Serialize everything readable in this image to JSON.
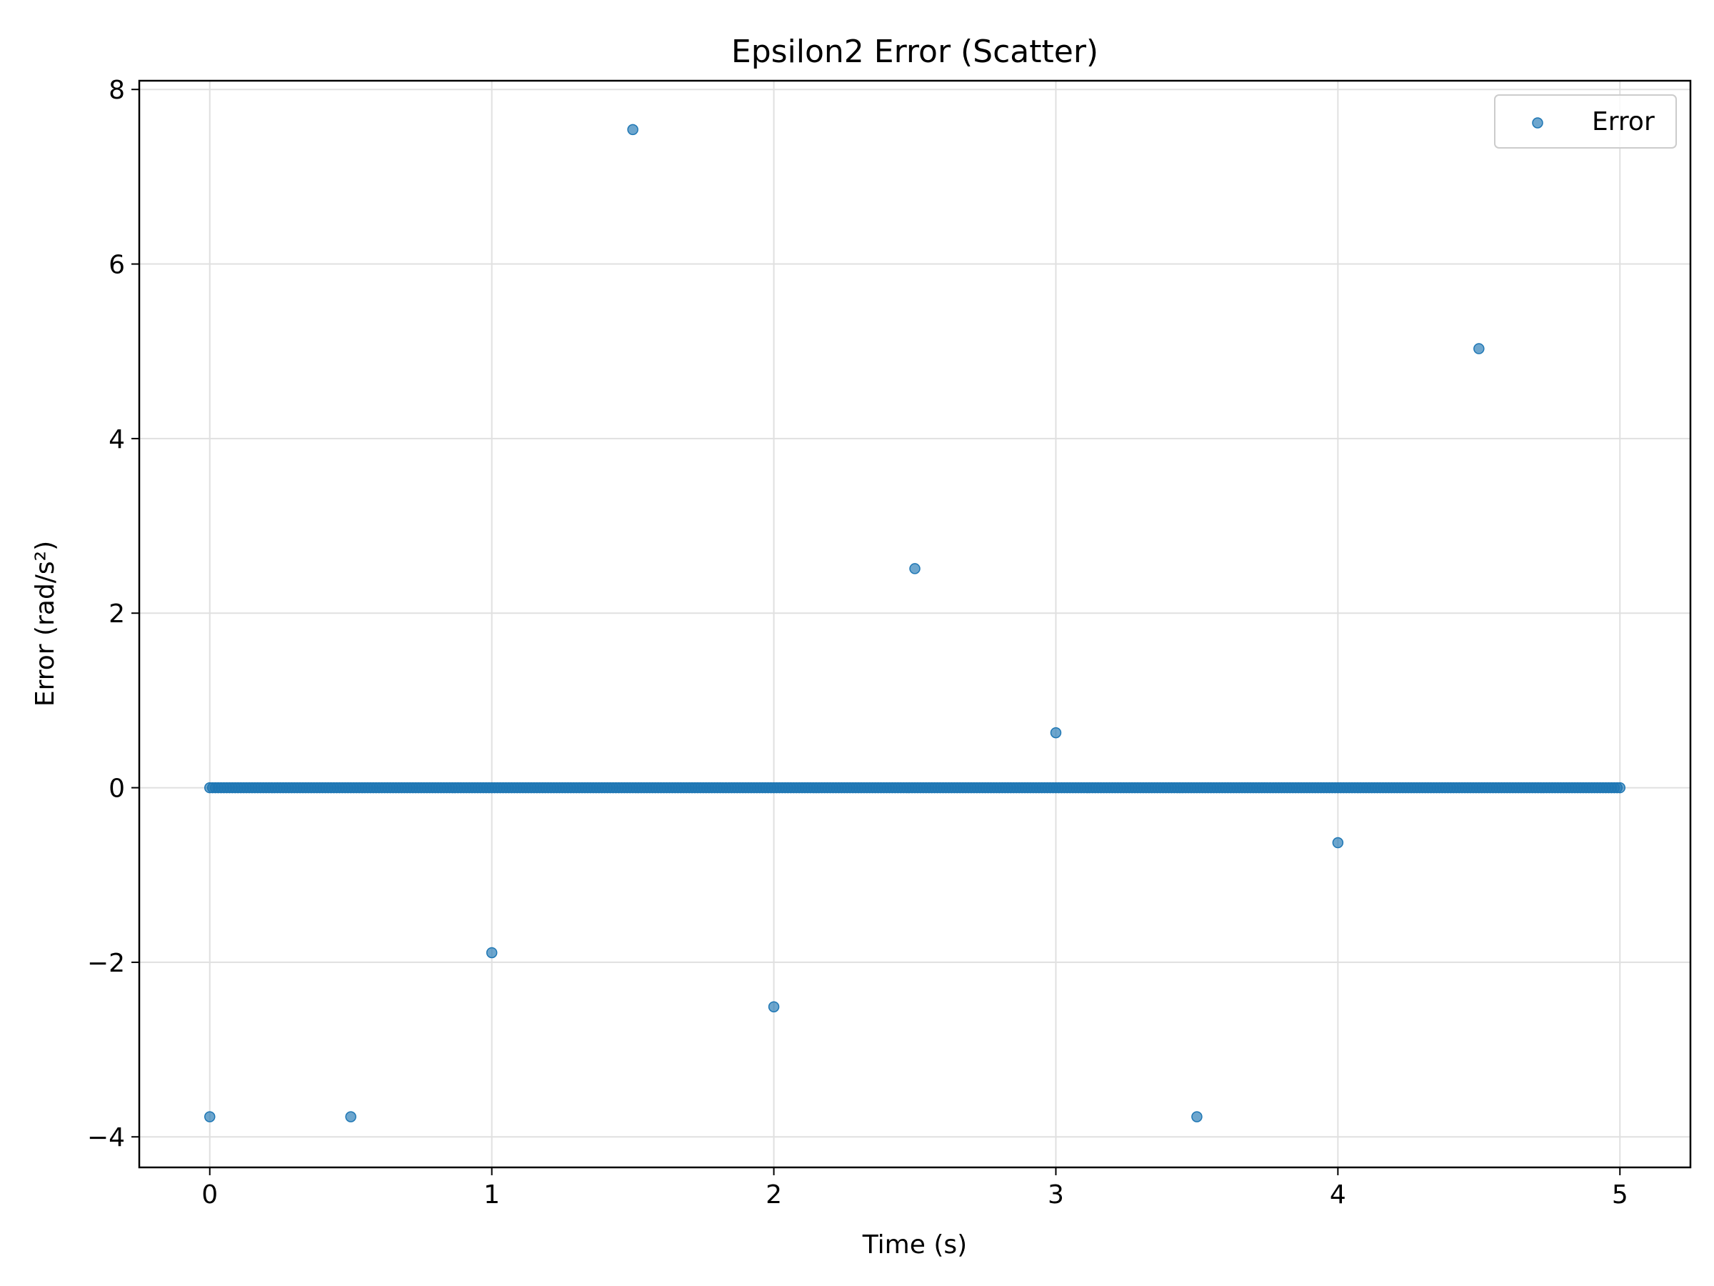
{
  "chart_data": {
    "type": "scatter",
    "title": "Epsilon2 Error (Scatter)",
    "xlabel": "Time (s)",
    "ylabel": "Error (rad/s²)",
    "xlim": [
      -0.25,
      5.25
    ],
    "ylim": [
      -4.35,
      8.1
    ],
    "xticks": [
      0,
      1,
      2,
      3,
      4,
      5
    ],
    "xtick_labels": [
      "0",
      "1",
      "2",
      "3",
      "4",
      "5"
    ],
    "yticks": [
      -4,
      -2,
      0,
      2,
      4,
      6,
      8
    ],
    "ytick_labels": [
      "−4",
      "−2",
      "0",
      "2",
      "4",
      "6",
      "8"
    ],
    "grid": true,
    "legend": {
      "position": "top-right",
      "entries": [
        "Error"
      ]
    },
    "colors": {
      "series": "#1f77b4",
      "grid": "#e0e0e0",
      "axis": "#000000"
    },
    "series": [
      {
        "name": "Error",
        "baseline": {
          "value": 0,
          "x_start": 0,
          "x_end": 5,
          "step": 0.01
        },
        "points": [
          {
            "x": 0.0,
            "y": -3.77
          },
          {
            "x": 0.5,
            "y": -3.77
          },
          {
            "x": 1.0,
            "y": -1.89
          },
          {
            "x": 1.5,
            "y": 7.54
          },
          {
            "x": 2.0,
            "y": -2.51
          },
          {
            "x": 2.5,
            "y": 2.51
          },
          {
            "x": 3.0,
            "y": 0.63
          },
          {
            "x": 3.5,
            "y": -3.77
          },
          {
            "x": 4.0,
            "y": -0.63
          },
          {
            "x": 4.5,
            "y": 5.03
          }
        ]
      }
    ]
  }
}
